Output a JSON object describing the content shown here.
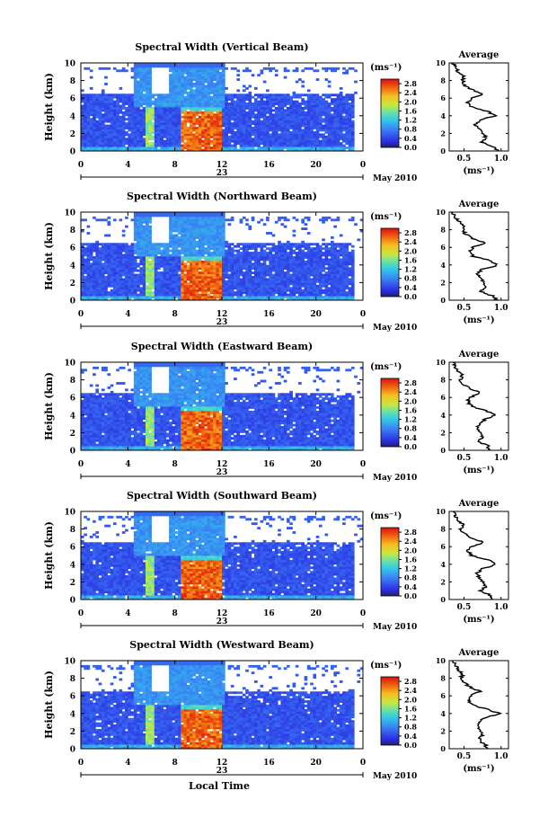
{
  "figure": {
    "xlabel": "Local Time",
    "average_title": "Average",
    "average_unit": "(ms⁻¹)",
    "colorbar_unit": "(ms⁻¹)",
    "date_label": "May 2010",
    "day_label": "23",
    "ylabel": "Height (km)"
  },
  "chart_data": [
    {
      "type": "heatmap",
      "title": "Spectral Width (Vertical Beam)",
      "ylabel": "Height (km)",
      "x_ticks": [
        "0",
        "4",
        "8",
        "12",
        "16",
        "20",
        "0"
      ],
      "xlim": [
        0,
        24
      ],
      "y_ticks": [
        "0",
        "2",
        "4",
        "6",
        "8",
        "10"
      ],
      "ylim": [
        0,
        10
      ],
      "colorbar": {
        "label": "(ms⁻¹)",
        "ticks": [
          "0.0",
          "0.4",
          "0.8",
          "1.2",
          "1.6",
          "2.0",
          "2.4",
          "2.8"
        ],
        "range": [
          0,
          3.0
        ]
      },
      "average_profile": {
        "title": "Average",
        "xlabel": "(ms⁻¹)",
        "x_ticks": [
          "0.5",
          "1.0"
        ],
        "xlim": [
          0.3,
          1.1
        ],
        "height": [
          0,
          0.5,
          1,
          1.5,
          2,
          2.5,
          3,
          3.5,
          4,
          4.5,
          5,
          5.5,
          6,
          6.5,
          7,
          7.5,
          8,
          8.5,
          9,
          9.5,
          10
        ],
        "width": [
          0.95,
          0.9,
          0.72,
          0.8,
          0.75,
          0.7,
          0.65,
          0.72,
          0.92,
          0.82,
          0.6,
          0.55,
          0.6,
          0.75,
          0.6,
          0.5,
          0.48,
          0.5,
          0.42,
          0.38,
          0.35
        ]
      }
    },
    {
      "type": "heatmap",
      "title": "Spectral Width (Northward Beam)",
      "ylabel": "Height (km)",
      "x_ticks": [
        "0",
        "4",
        "8",
        "12",
        "16",
        "20",
        "0"
      ],
      "xlim": [
        0,
        24
      ],
      "y_ticks": [
        "0",
        "2",
        "4",
        "6",
        "8",
        "10"
      ],
      "ylim": [
        0,
        10
      ],
      "colorbar": {
        "label": "(ms⁻¹)",
        "ticks": [
          "0.0",
          "0.4",
          "0.8",
          "1.2",
          "1.6",
          "2.0",
          "2.4",
          "2.8"
        ],
        "range": [
          0,
          3.0
        ]
      },
      "average_profile": {
        "title": "Average",
        "xlabel": "(ms⁻¹)",
        "x_ticks": [
          "0.5",
          "1.0"
        ],
        "xlim": [
          0.3,
          1.1
        ],
        "height": [
          0,
          0.5,
          1,
          1.5,
          2,
          2.5,
          3,
          3.5,
          4,
          4.5,
          5,
          5.5,
          6,
          6.5,
          7,
          7.5,
          8,
          8.5,
          9,
          9.5,
          10
        ],
        "width": [
          0.95,
          0.88,
          0.72,
          0.8,
          0.78,
          0.72,
          0.68,
          0.75,
          0.95,
          0.85,
          0.62,
          0.58,
          0.62,
          0.8,
          0.62,
          0.52,
          0.48,
          0.5,
          0.42,
          0.38,
          0.35
        ]
      }
    },
    {
      "type": "heatmap",
      "title": "Spectral Width (Eastward Beam)",
      "ylabel": "Height (km)",
      "x_ticks": [
        "0",
        "4",
        "8",
        "12",
        "16",
        "20",
        "0"
      ],
      "xlim": [
        0,
        24
      ],
      "y_ticks": [
        "0",
        "2",
        "4",
        "6",
        "8",
        "10"
      ],
      "ylim": [
        0,
        10
      ],
      "colorbar": {
        "label": "(ms⁻¹)",
        "ticks": [
          "0.0",
          "0.4",
          "0.8",
          "1.2",
          "1.6",
          "2.0",
          "2.4",
          "2.8"
        ],
        "range": [
          0,
          3.0
        ]
      },
      "average_profile": {
        "title": "Average",
        "xlabel": "(ms⁻¹)",
        "x_ticks": [
          "0.5",
          "1.0"
        ],
        "xlim": [
          0.3,
          1.1
        ],
        "height": [
          0,
          0.5,
          1,
          1.5,
          2,
          2.5,
          3,
          3.5,
          4,
          4.5,
          5,
          5.5,
          6,
          6.5,
          7,
          7.5,
          8,
          8.5,
          9,
          9.5,
          10
        ],
        "width": [
          0.85,
          0.82,
          0.7,
          0.75,
          0.72,
          0.68,
          0.7,
          0.78,
          0.92,
          0.8,
          0.6,
          0.55,
          0.58,
          0.72,
          0.58,
          0.5,
          0.45,
          0.48,
          0.4,
          0.38,
          0.35
        ]
      }
    },
    {
      "type": "heatmap",
      "title": "Spectral Width (Southward Beam)",
      "ylabel": "Height (km)",
      "x_ticks": [
        "0",
        "4",
        "8",
        "12",
        "16",
        "20",
        "0"
      ],
      "xlim": [
        0,
        24
      ],
      "y_ticks": [
        "0",
        "2",
        "4",
        "6",
        "8",
        "10"
      ],
      "ylim": [
        0,
        10
      ],
      "colorbar": {
        "label": "(ms⁻¹)",
        "ticks": [
          "0.0",
          "0.4",
          "0.8",
          "1.2",
          "1.6",
          "2.0",
          "2.4",
          "2.8"
        ],
        "range": [
          0,
          3.0
        ]
      },
      "average_profile": {
        "title": "Average",
        "xlabel": "(ms⁻¹)",
        "x_ticks": [
          "0.5",
          "1.0"
        ],
        "xlim": [
          0.3,
          1.1
        ],
        "height": [
          0,
          0.5,
          1,
          1.5,
          2,
          2.5,
          3,
          3.5,
          4,
          4.5,
          5,
          5.5,
          6,
          6.5,
          7,
          7.5,
          8,
          8.5,
          9,
          9.5,
          10
        ],
        "width": [
          0.88,
          0.85,
          0.72,
          0.8,
          0.75,
          0.7,
          0.68,
          0.75,
          0.94,
          0.82,
          0.6,
          0.55,
          0.6,
          0.76,
          0.6,
          0.5,
          0.46,
          0.5,
          0.4,
          0.38,
          0.35
        ]
      }
    },
    {
      "type": "heatmap",
      "title": "Spectral Width (Westward Beam)",
      "ylabel": "Height (km)",
      "x_ticks": [
        "0",
        "4",
        "8",
        "12",
        "16",
        "20",
        "0"
      ],
      "xlim": [
        0,
        24
      ],
      "y_ticks": [
        "0",
        "2",
        "4",
        "6",
        "8",
        "10"
      ],
      "ylim": [
        0,
        10
      ],
      "colorbar": {
        "label": "(ms⁻¹)",
        "ticks": [
          "0.0",
          "0.4",
          "0.8",
          "1.2",
          "1.6",
          "2.0",
          "2.4",
          "2.8"
        ],
        "range": [
          0,
          3.0
        ]
      },
      "average_profile": {
        "title": "Average",
        "xlabel": "(ms⁻¹)",
        "x_ticks": [
          "0.5",
          "1.0"
        ],
        "xlim": [
          0.3,
          1.1
        ],
        "height": [
          0,
          0.5,
          1,
          1.5,
          2,
          2.5,
          3,
          3.5,
          4,
          4.5,
          5,
          5.5,
          6,
          6.5,
          7,
          7.5,
          8,
          8.5,
          9,
          9.5,
          10
        ],
        "width": [
          0.82,
          0.78,
          0.7,
          0.74,
          0.72,
          0.68,
          0.7,
          0.78,
          0.98,
          0.8,
          0.6,
          0.55,
          0.58,
          0.72,
          0.58,
          0.5,
          0.46,
          0.48,
          0.42,
          0.38,
          0.35
        ]
      }
    }
  ]
}
